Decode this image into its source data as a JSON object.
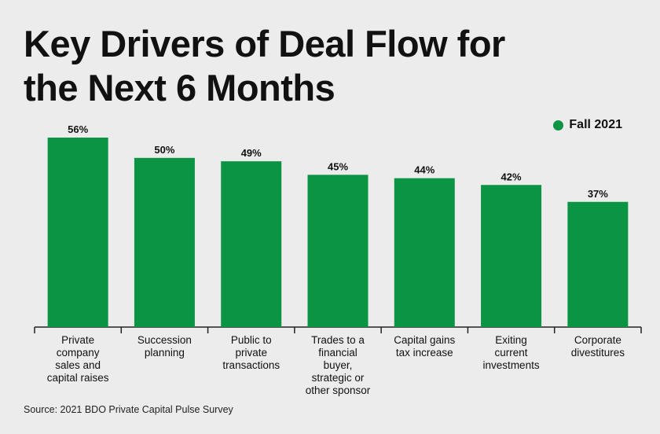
{
  "title": [
    "Key Drivers of Deal Flow for",
    "the Next 6 Months"
  ],
  "source": "Source: 2021 BDO Private Capital Pulse Survey",
  "colors": {
    "bar": "#0b9444",
    "text": "#111111",
    "axis": "#222222"
  },
  "chart_data": {
    "type": "bar",
    "title": "Key Drivers of Deal Flow for the Next 6 Months",
    "categories": [
      [
        "Private",
        "company",
        "sales and",
        "capital raises"
      ],
      [
        "Succession",
        "planning"
      ],
      [
        "Public to",
        "private",
        "transactions"
      ],
      [
        "Trades to a",
        "financial",
        "buyer,",
        "strategic or",
        "other sponsor"
      ],
      [
        "Capital gains",
        "tax increase"
      ],
      [
        "Exiting",
        "current",
        "investments"
      ],
      [
        "Corporate",
        "divestitures"
      ]
    ],
    "series": [
      {
        "name": "Fall 2021",
        "values": [
          56,
          50,
          49,
          45,
          44,
          42,
          37
        ]
      }
    ],
    "value_labels": [
      "56%",
      "50%",
      "49%",
      "45%",
      "44%",
      "42%",
      "37%"
    ],
    "ylim": [
      0,
      56
    ],
    "legend": "top-right",
    "grid": false
  }
}
